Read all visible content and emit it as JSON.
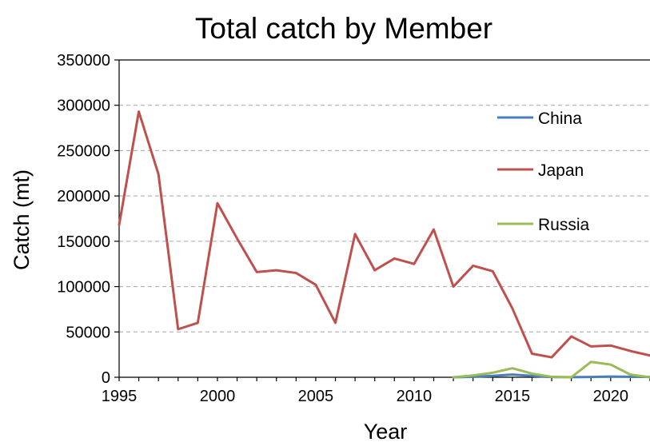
{
  "chart_data": {
    "type": "line",
    "title": "Total catch by Member",
    "xlabel": "Year",
    "ylabel": "Catch (mt)",
    "xlim": [
      1995,
      2022
    ],
    "ylim": [
      0,
      350000
    ],
    "x_ticks": [
      1995,
      2000,
      2005,
      2010,
      2015,
      2020
    ],
    "x_tick_labels": [
      "1995",
      "2000",
      "2005",
      "2010",
      "2015",
      "2020"
    ],
    "y_ticks": [
      0,
      50000,
      100000,
      150000,
      200000,
      250000,
      300000,
      350000
    ],
    "y_tick_labels": [
      "0",
      "50000",
      "100000",
      "150000",
      "200000",
      "250000",
      "300000",
      "350000"
    ],
    "grid": "horizontal dashed",
    "legend_position": "right",
    "series": [
      {
        "name": "China",
        "color": "#4a7ebb",
        "points": [
          [
            2012,
            0
          ],
          [
            2013,
            500
          ],
          [
            2014,
            1500
          ],
          [
            2015,
            3000
          ],
          [
            2016,
            1500
          ],
          [
            2017,
            200
          ],
          [
            2018,
            100
          ],
          [
            2019,
            300
          ],
          [
            2020,
            800
          ],
          [
            2021,
            500
          ],
          [
            2022,
            300
          ]
        ]
      },
      {
        "name": "Japan",
        "color": "#c0504d",
        "points": [
          [
            1995,
            168000
          ],
          [
            1996,
            293000
          ],
          [
            1997,
            224000
          ],
          [
            1998,
            53000
          ],
          [
            1999,
            60000
          ],
          [
            2000,
            192000
          ],
          [
            2001,
            153000
          ],
          [
            2002,
            116000
          ],
          [
            2003,
            118000
          ],
          [
            2004,
            115000
          ],
          [
            2005,
            102000
          ],
          [
            2006,
            60000
          ],
          [
            2007,
            158000
          ],
          [
            2008,
            118000
          ],
          [
            2009,
            131000
          ],
          [
            2010,
            125000
          ],
          [
            2011,
            163000
          ],
          [
            2012,
            100000
          ],
          [
            2013,
            123000
          ],
          [
            2014,
            117000
          ],
          [
            2015,
            76000
          ],
          [
            2016,
            26000
          ],
          [
            2017,
            22000
          ],
          [
            2018,
            45000
          ],
          [
            2019,
            34000
          ],
          [
            2020,
            35000
          ],
          [
            2021,
            29000
          ],
          [
            2022,
            24000
          ]
        ]
      },
      {
        "name": "Russia",
        "color": "#9bbb59",
        "points": [
          [
            2012,
            0
          ],
          [
            2013,
            2000
          ],
          [
            2014,
            5000
          ],
          [
            2015,
            10000
          ],
          [
            2016,
            4000
          ],
          [
            2017,
            500
          ],
          [
            2018,
            0
          ],
          [
            2019,
            17000
          ],
          [
            2020,
            14000
          ],
          [
            2021,
            3000
          ],
          [
            2022,
            0
          ]
        ]
      }
    ]
  }
}
